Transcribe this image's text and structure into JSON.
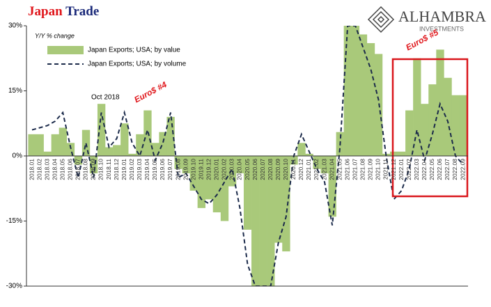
{
  "chart_data": {
    "type": "bar-line",
    "title": [
      "Japan",
      "Trade"
    ],
    "logo": {
      "name": "ALHAMBRA",
      "tagline": "INVESTMENTS"
    },
    "y_label": "Y/Y % change",
    "annotations": [
      "Oct 2018",
      "Euro$ #4",
      "Euro$ #5"
    ],
    "legend": "upper left",
    "categories": [
      "2018.01",
      "2018.02",
      "2018.03",
      "2018.04",
      "2018.05",
      "2018.06",
      "2018.07",
      "2018.08",
      "2018.09",
      "2018.10",
      "2018.11",
      "2018.12",
      "2019.01",
      "2019.02",
      "2019.03",
      "2019.04",
      "2019.05",
      "2019.06",
      "2019.07",
      "2019.08",
      "2019.09",
      "2019.10",
      "2019.11",
      "2019.12",
      "2020.01",
      "2020.02",
      "2020.03",
      "2020.04",
      "2020.05",
      "2020.06",
      "2020.07",
      "2020.08",
      "2020.09",
      "2020.10",
      "2020.11",
      "2020.12",
      "2021.01",
      "2021.02",
      "2021.03",
      "2021.04",
      "2021.05",
      "2021.06",
      "2021.07",
      "2021.08",
      "2021.09",
      "2021.10",
      "2021.11",
      "2021.12",
      "2022.01",
      "2022.02",
      "2022.03",
      "2022.04",
      "2022.05",
      "2022.06",
      "2022.07",
      "2022.08",
      "2022.09"
    ],
    "series": [
      {
        "name": "Japan Exports; USA; by value",
        "color": "#a9c97a",
        "kind": "area",
        "values": [
          5,
          5,
          1,
          5,
          6.5,
          3,
          -2,
          6,
          -4,
          12,
          2,
          2.5,
          7.5,
          0.5,
          5,
          10.5,
          3,
          5.5,
          9,
          -3,
          -4,
          -8,
          -12,
          -10,
          -13,
          -15,
          -7,
          -4,
          -17,
          -30,
          -30,
          -30,
          -20,
          -22,
          -2,
          3,
          0.5,
          -3,
          -4,
          -14,
          5.5,
          30,
          30,
          28,
          26,
          23.5,
          0.5,
          1,
          1,
          10.5,
          22.5,
          12,
          16.5,
          24.5,
          18,
          14,
          14
        ]
      },
      {
        "name": "Japan Exports; USA; by volume",
        "color": "#1b2a4a",
        "kind": "dashed",
        "values": [
          6,
          6.5,
          7,
          8,
          10,
          2,
          -5,
          3,
          -5,
          10,
          2,
          4,
          10,
          3,
          0,
          6,
          -1,
          3,
          10,
          -5,
          -4,
          -7,
          -10,
          -11,
          -9,
          -6,
          -3,
          -12,
          -25,
          -30,
          -30,
          -30,
          -20,
          -14,
          0,
          5,
          1,
          -3,
          -6,
          -16,
          2,
          30,
          30,
          25,
          20,
          13,
          0,
          -10,
          -8,
          -3,
          6,
          -1,
          5,
          12,
          8,
          0,
          -2
        ]
      }
    ],
    "ylim": [
      -30,
      30
    ],
    "yticks": [
      {
        "value": -30,
        "label": "-30%"
      },
      {
        "value": -15,
        "label": "-15%"
      },
      {
        "value": 0,
        "label": "0%"
      },
      {
        "value": 15,
        "label": "15%"
      },
      {
        "value": 30,
        "label": "30%"
      }
    ]
  }
}
